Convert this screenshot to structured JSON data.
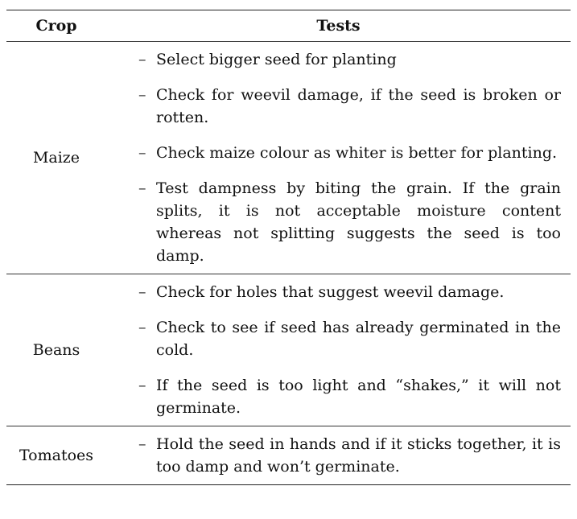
{
  "table": {
    "headers": {
      "crop": "Crop",
      "tests": "Tests"
    },
    "rows": [
      {
        "crop": "Maize",
        "tests": [
          "Select bigger seed for planting",
          "Check for weevil damage, if the seed is broken or rotten.",
          "Check maize colour as whiter is better for planting.",
          "Test dampness by biting the grain. If the grain splits, it is not acceptable moisture content whereas not splitting suggests the seed is too damp."
        ]
      },
      {
        "crop": "Beans",
        "tests": [
          "Check for holes that suggest weevil damage.",
          "Check to see if seed has already germinated in the cold.",
          "If the seed is too light and “shakes,” it will not germinate."
        ]
      },
      {
        "crop": "Tomatoes",
        "tests": [
          "Hold the seed in hands and if it sticks together, it is too damp and won’t germinate."
        ]
      }
    ],
    "bullet": "–"
  }
}
